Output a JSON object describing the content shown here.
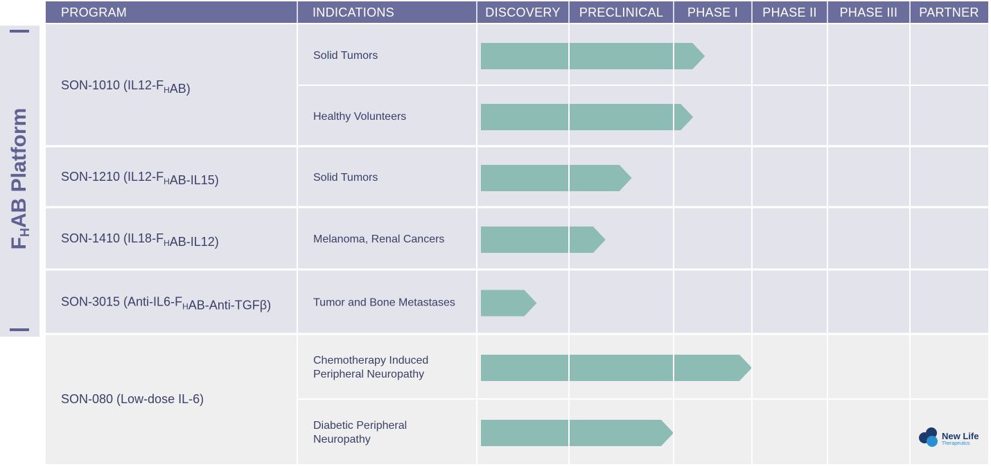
{
  "platform_label": {
    "main": "F",
    "sub": "H",
    "rest": "AB Platform"
  },
  "columns": [
    "PROGRAM",
    "INDICATIONS",
    "DISCOVERY",
    "PRECLINICAL",
    "PHASE I",
    "PHASE II",
    "PHASE III",
    "PARTNER"
  ],
  "colors": {
    "header": "#6b6e9c",
    "group_platform": "#e3e3ec",
    "group_other": "#efefef",
    "bar": "#8dbcb5",
    "text": "#3a4066"
  },
  "chart_data": {
    "type": "table",
    "stages": [
      "DISCOVERY",
      "PRECLINICAL",
      "PHASE I",
      "PHASE II",
      "PHASE III"
    ],
    "programs": [
      {
        "group": "platform",
        "name": [
          {
            "t": "SON-1010 (IL12-F"
          },
          {
            "t": "H",
            "sub": true
          },
          {
            "t": "AB)"
          }
        ],
        "indications": [
          {
            "label": [
              "Solid Tumors"
            ],
            "progress": 2.4
          },
          {
            "label": [
              "Healthy Volunteers"
            ],
            "progress": 2.25
          }
        ]
      },
      {
        "group": "platform",
        "name": [
          {
            "t": "SON-1210 (IL12-F"
          },
          {
            "t": "H",
            "sub": true
          },
          {
            "t": "AB-IL15)"
          }
        ],
        "indications": [
          {
            "label": [
              "Solid Tumors"
            ],
            "progress": 1.6
          }
        ]
      },
      {
        "group": "platform",
        "name": [
          {
            "t": "SON-1410 (IL18-F"
          },
          {
            "t": "H",
            "sub": true
          },
          {
            "t": "AB-IL12)"
          }
        ],
        "indications": [
          {
            "label": [
              "Melanoma, Renal Cancers"
            ],
            "progress": 1.35
          }
        ]
      },
      {
        "group": "platform",
        "name": [
          {
            "t": "SON-3015 (Anti-IL6-F"
          },
          {
            "t": "H",
            "sub": true
          },
          {
            "t": "AB-Anti-TGFβ)"
          }
        ],
        "indications": [
          {
            "label": [
              "Tumor and Bone Metastases"
            ],
            "progress": 0.65
          }
        ]
      },
      {
        "group": "other",
        "name": [
          {
            "t": "SON-080 (Low-dose IL-6)"
          }
        ],
        "indications": [
          {
            "label": [
              "Chemotherapy Induced",
              "Peripheral Neuropathy"
            ],
            "progress": 3.0
          },
          {
            "label": [
              "Diabetic Peripheral",
              "Neuropathy"
            ],
            "progress": 2.0,
            "partner": "New Life Therapeutics"
          }
        ]
      }
    ]
  },
  "partner_logo": {
    "name": "New Life",
    "sub": "Therapeutics",
    "icon": "three-circles-logo-icon"
  }
}
